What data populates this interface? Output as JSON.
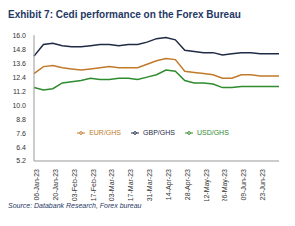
{
  "chart_data": {
    "type": "line",
    "title": "Exhibit 7: Cedi performance on the Forex Bureau",
    "annotations": [
      "Source: Databank Research, Forex bureau"
    ],
    "categories": [
      "06-Jan-23",
      null,
      "20-Jan-23",
      null,
      "03-Feb-23",
      null,
      "17-Feb-23",
      null,
      "03-Mar-23",
      null,
      "17-Mar-23",
      null,
      "31-Mar-23",
      null,
      "14-Apr-23",
      null,
      "28-Apr-23",
      null,
      "12-May-23",
      null,
      "26-May-23",
      null,
      "09-Jun-23",
      null,
      "23-Jun-23",
      null,
      null
    ],
    "series": [
      {
        "name": "USD/GHS",
        "color": "#2e8b2e",
        "values": [
          11.5,
          11.3,
          11.4,
          11.9,
          12.0,
          12.1,
          12.3,
          12.2,
          12.2,
          12.3,
          12.3,
          12.2,
          12.4,
          12.6,
          13.0,
          12.9,
          12.1,
          11.9,
          11.9,
          11.8,
          11.5,
          11.5,
          11.6,
          11.6,
          11.6,
          11.6,
          11.6
        ]
      },
      {
        "name": "GBP/GHS",
        "color": "#1f2a44",
        "values": [
          14.2,
          15.2,
          15.3,
          15.1,
          15.0,
          15.0,
          15.1,
          15.2,
          15.2,
          15.1,
          15.2,
          15.2,
          15.4,
          15.7,
          15.8,
          15.6,
          14.7,
          14.6,
          14.5,
          14.5,
          14.3,
          14.4,
          14.5,
          14.5,
          14.4,
          14.4,
          14.4
        ]
      },
      {
        "name": "EUR/GHS",
        "color": "#c07a2a",
        "values": [
          12.7,
          13.3,
          13.4,
          13.2,
          13.1,
          13.0,
          13.1,
          13.2,
          13.3,
          13.2,
          13.2,
          13.2,
          13.5,
          13.8,
          14.0,
          13.9,
          12.9,
          12.8,
          12.7,
          12.6,
          12.3,
          12.3,
          12.6,
          12.6,
          12.5,
          12.5,
          12.5
        ]
      }
    ],
    "ylim": [
      5.2,
      16
    ],
    "yticks": [
      {
        "value": 5.2,
        "label": "5.2"
      },
      6.4,
      7.6,
      8.8,
      {
        "value": 10,
        "label": "10.0"
      },
      11.2,
      12.4,
      13.6,
      14.8,
      {
        "value": 16,
        "label": "16.0"
      }
    ],
    "grid": false,
    "legend": "bottom"
  }
}
